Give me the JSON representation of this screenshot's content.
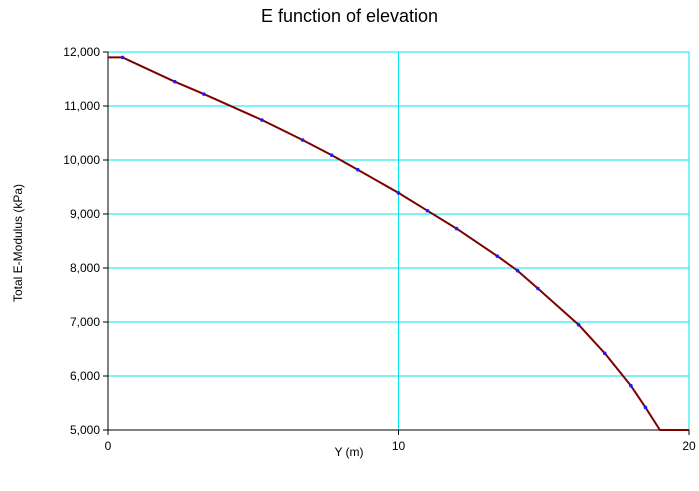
{
  "chart_data": {
    "type": "line",
    "title": "E function of elevation",
    "xlabel": "Y (m)",
    "ylabel": "Total E-Modulus (kPa)",
    "xlim": [
      0,
      20
    ],
    "ylim": [
      5000,
      12000
    ],
    "x_ticks": [
      0,
      10,
      20
    ],
    "y_ticks": [
      5000,
      6000,
      7000,
      8000,
      9000,
      10000,
      11000,
      12000
    ],
    "x_tick_labels": [
      "0",
      "10",
      "20"
    ],
    "y_tick_labels": [
      "5,000",
      "6,000",
      "7,000",
      "8,000",
      "9,000",
      "10,000",
      "11,000",
      "12,000"
    ],
    "grid": true,
    "colors": {
      "grid": "#00e5ee",
      "line": "#800000",
      "markers": "#1a1aff",
      "axes": "#000000"
    },
    "series": [
      {
        "x": [
          0,
          0.5,
          2.3,
          3.3,
          5.3,
          6.7,
          7.7,
          8.6,
          10.0,
          11.0,
          12.0,
          13.4,
          14.1,
          14.8,
          16.2,
          17.1,
          18.0,
          18.5,
          19.0,
          20.0
        ],
        "y": [
          11900,
          11900,
          11450,
          11220,
          10740,
          10370,
          10090,
          9820,
          9390,
          9060,
          8730,
          8220,
          7950,
          7620,
          6950,
          6420,
          5820,
          5420,
          5000,
          5000
        ]
      }
    ],
    "markers": {
      "x": [
        0.5,
        2.3,
        3.3,
        5.3,
        6.7,
        7.7,
        8.6,
        10.0,
        11.0,
        12.0,
        13.4,
        14.1,
        14.8,
        16.2,
        17.1,
        18.0,
        18.5
      ],
      "y": [
        11900,
        11450,
        11220,
        10740,
        10370,
        10090,
        9820,
        9390,
        9060,
        8730,
        8220,
        7950,
        7620,
        6950,
        6420,
        5820,
        5420
      ]
    }
  }
}
